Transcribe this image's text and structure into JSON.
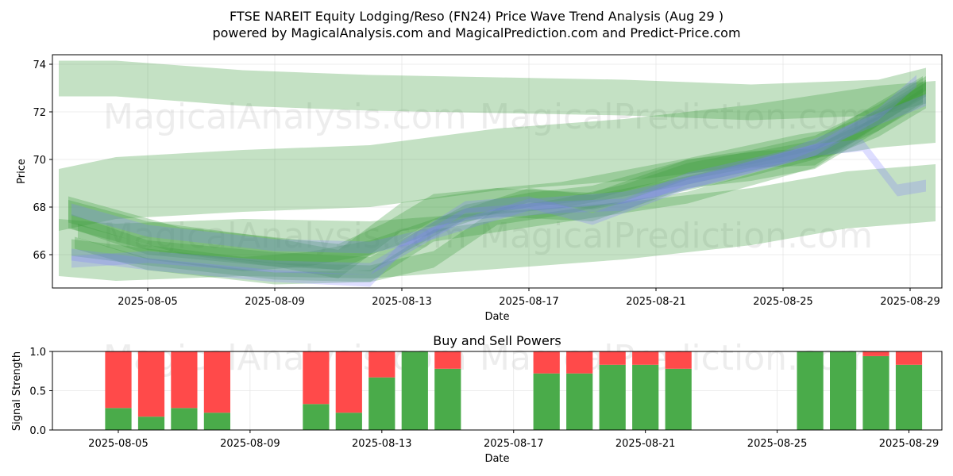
{
  "chart_data": [
    {
      "type": "area",
      "title": "FTSE NAREIT Equity Lodging/Reso (FN24) Price Wave Trend Analysis (Aug 29 )",
      "subtitle": "powered by MagicalAnalysis.com and MagicalPrediction.com and Predict-Price.com",
      "xlabel": "Date",
      "ylabel": "Price",
      "xlim": [
        "2025-08-02",
        "2025-08-30"
      ],
      "ylim": [
        64.6,
        74.4
      ],
      "x_ticks": [
        "2025-08-05",
        "2025-08-09",
        "2025-08-13",
        "2025-08-17",
        "2025-08-21",
        "2025-08-25",
        "2025-08-29"
      ],
      "y_ticks": [
        66,
        68,
        70,
        72,
        74
      ],
      "grid": true,
      "watermarks": [
        "MagicalAnalysis.com",
        "MagicalPrediction.com",
        "MagicalAnalysis.com",
        "MagicalPrediction.com"
      ],
      "bands": [
        {
          "color": "green",
          "x": [
            0.2,
            2,
            6,
            10,
            14,
            18,
            22,
            26,
            27.5
          ],
          "center": [
            73.4,
            73.4,
            73.0,
            72.8,
            72.7,
            72.6,
            72.4,
            72.6,
            73.1
          ],
          "half_width": 0.75
        },
        {
          "color": "green",
          "x": [
            0.2,
            2,
            6,
            10,
            14,
            18,
            22,
            26,
            27.8
          ],
          "center": [
            68.3,
            68.8,
            69.1,
            69.3,
            70.0,
            70.4,
            71.0,
            71.8,
            72.0
          ],
          "half_width": 1.3
        },
        {
          "color": "green",
          "x": [
            0.2,
            2,
            6,
            10,
            14,
            18,
            22,
            25,
            27.8
          ],
          "center": [
            66.3,
            66.1,
            66.3,
            66.2,
            66.6,
            67.0,
            67.6,
            68.3,
            68.6
          ],
          "half_width": 1.2
        },
        {
          "color": "green",
          "x": [
            0.5,
            4,
            9,
            10.5,
            12,
            16,
            20,
            23.5,
            24.5,
            26,
            27.5
          ],
          "center": [
            67.9,
            66.6,
            65.9,
            66.8,
            68.0,
            68.5,
            69.5,
            70.5,
            70.7,
            71.5,
            72.7
          ],
          "half_width": 0.55
        },
        {
          "color": "green",
          "x": [
            0.5,
            3,
            7,
            9,
            11,
            14,
            17,
            20,
            22,
            24,
            26,
            27.4
          ],
          "center": [
            67.7,
            66.8,
            66.1,
            65.6,
            67.6,
            68.2,
            68.0,
            69.4,
            69.7,
            70.2,
            71.8,
            72.9
          ],
          "half_width": 0.6
        },
        {
          "color": "green",
          "x": [
            0.6,
            3,
            7,
            10,
            13,
            15,
            17,
            20,
            22,
            24,
            26,
            27.5
          ],
          "center": [
            67.4,
            66.3,
            65.8,
            65.6,
            67.8,
            68.3,
            68.6,
            69.7,
            70.1,
            70.7,
            72.0,
            73.2
          ],
          "half_width": 0.3
        },
        {
          "color": "green",
          "x": [
            0.6,
            3,
            7,
            10,
            12,
            14,
            16,
            18,
            20,
            22,
            24,
            26,
            27.5
          ],
          "center": [
            66.3,
            65.9,
            65.3,
            65.2,
            65.8,
            67.6,
            68.0,
            68.6,
            69.5,
            70.0,
            70.1,
            71.8,
            73.0
          ],
          "half_width": 0.35
        },
        {
          "color": "green",
          "x": [
            0.8,
            3,
            6,
            8,
            10,
            12,
            15,
            17,
            20,
            22,
            24,
            26,
            27.4
          ],
          "center": [
            67.0,
            66.1,
            65.6,
            65.8,
            66.3,
            67.2,
            68.5,
            68.2,
            69.0,
            69.6,
            70.3,
            71.5,
            72.7
          ],
          "half_width": 0.3
        },
        {
          "color": "green",
          "x": [
            0.7,
            3,
            7,
            10,
            12,
            14,
            16,
            20,
            24,
            27.5
          ],
          "center": [
            66.5,
            65.6,
            65.0,
            65.1,
            66.8,
            67.2,
            67.6,
            68.4,
            69.9,
            73.0
          ],
          "half_width": 0.25
        },
        {
          "color": "blue",
          "x": [
            0.6,
            3,
            7,
            10,
            11,
            13,
            15,
            17,
            20,
            24,
            26,
            27.2
          ],
          "center": [
            66.0,
            65.6,
            65.1,
            64.9,
            66.3,
            68.0,
            68.2,
            67.5,
            69.0,
            70.4,
            71.9,
            73.3
          ],
          "half_width": 0.25
        },
        {
          "color": "blue",
          "x": [
            0.6,
            3,
            7,
            10,
            13,
            16,
            18,
            20,
            23,
            26,
            27.5
          ],
          "center": [
            65.7,
            65.9,
            65.5,
            65.4,
            67.7,
            68.0,
            68.1,
            69.2,
            70.1,
            71.7,
            72.5
          ],
          "half_width": 0.25
        },
        {
          "color": "blue",
          "x": [
            0.6,
            3,
            7,
            10,
            12,
            15,
            18,
            21,
            24,
            25.5,
            26.6,
            27.5
          ],
          "center": [
            67.9,
            67.0,
            66.4,
            66.3,
            66.9,
            68.1,
            68.4,
            69.3,
            70.4,
            70.6,
            68.7,
            68.9
          ],
          "half_width": 0.25
        }
      ]
    },
    {
      "type": "bar",
      "title": "Buy and Sell Powers",
      "xlabel": "Date",
      "ylabel": "Signal Strength",
      "xlim": [
        "2025-08-03",
        "2025-08-30"
      ],
      "ylim": [
        0,
        1.0
      ],
      "y_ticks": [
        "0.0",
        "0.5",
        "1.0"
      ],
      "x_ticks": [
        "2025-08-05",
        "2025-08-09",
        "2025-08-13",
        "2025-08-17",
        "2025-08-21",
        "2025-08-25",
        "2025-08-29"
      ],
      "grid": true,
      "watermarks": [
        "MagicalAnalysis.com",
        "MagicalPrediction.com"
      ],
      "colors": {
        "buy": "#4aab4a",
        "sell": "#ff4a4a"
      },
      "categories": [
        "2025-08-05",
        "2025-08-06",
        "2025-08-07",
        "2025-08-08",
        "2025-08-11",
        "2025-08-12",
        "2025-08-13",
        "2025-08-14",
        "2025-08-15",
        "2025-08-18",
        "2025-08-19",
        "2025-08-20",
        "2025-08-21",
        "2025-08-22",
        "2025-08-26",
        "2025-08-27",
        "2025-08-28",
        "2025-08-29"
      ],
      "series": [
        {
          "name": "Buy",
          "values": [
            0.28,
            0.17,
            0.28,
            0.22,
            0.33,
            0.22,
            0.67,
            1.0,
            0.78,
            0.72,
            0.72,
            0.83,
            0.83,
            0.78,
            1.0,
            1.0,
            0.94,
            0.83
          ]
        },
        {
          "name": "Sell",
          "values": [
            0.72,
            0.83,
            0.72,
            0.78,
            0.67,
            0.78,
            0.33,
            0.0,
            0.22,
            0.28,
            0.28,
            0.17,
            0.17,
            0.22,
            0.0,
            0.0,
            0.06,
            0.17
          ]
        }
      ]
    }
  ]
}
